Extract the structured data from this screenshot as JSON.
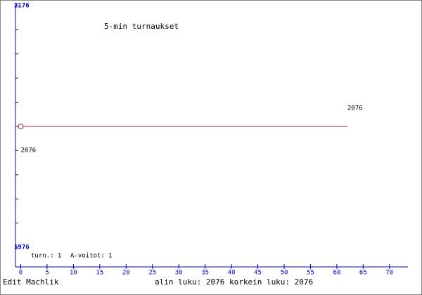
{
  "chart_data": {
    "type": "line",
    "title": "5-min turnaukset",
    "x": [
      0,
      62
    ],
    "values": [
      2076,
      2076
    ],
    "color": "#a0302a",
    "axis_color": "#0000cc",
    "xlim": [
      -1,
      73.5
    ],
    "xticks": [
      0,
      5,
      10,
      15,
      20,
      25,
      30,
      35,
      40,
      45,
      50,
      55,
      60,
      65,
      70
    ],
    "ylim": [
      1976,
      2176
    ],
    "yticks": [
      1976,
      2176
    ],
    "yminor_ticks": [
      1996,
      2016,
      2036,
      2056,
      2076,
      2096,
      2116,
      2136,
      2156
    ],
    "annotations": [
      "turn.: 1",
      "A-voitot: 1"
    ]
  },
  "footer": {
    "left": "Edit Machlik",
    "range": "alin luku: 2076  korkein luku: 2076"
  }
}
